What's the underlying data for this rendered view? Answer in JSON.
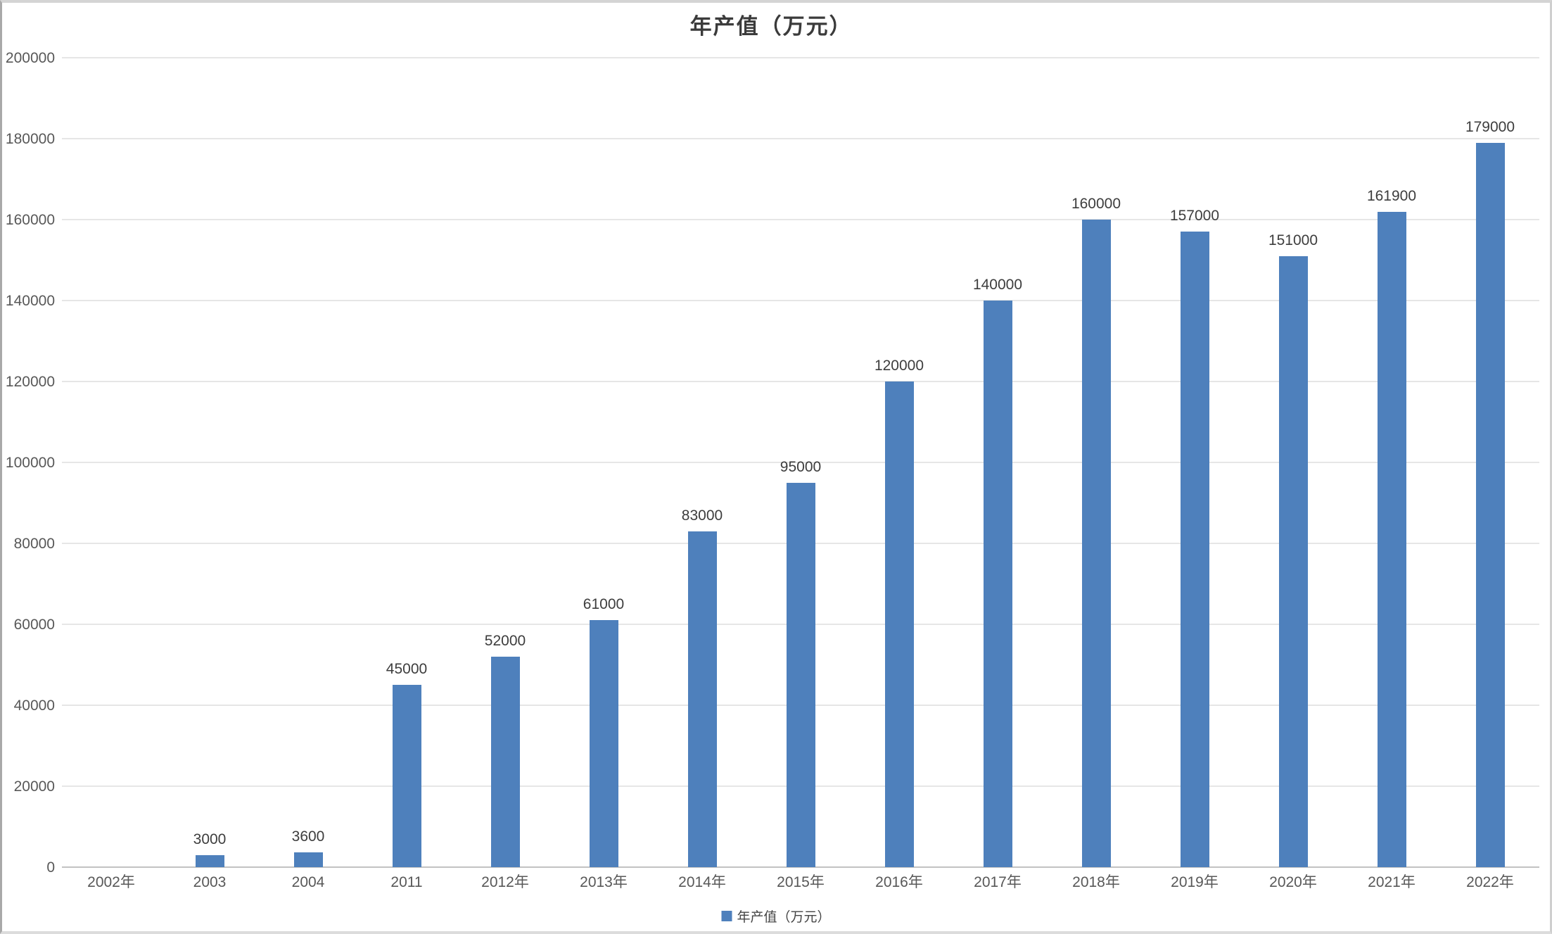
{
  "chart_data": {
    "type": "bar",
    "title": "年产值（万元）",
    "series_name": "年产值（万元）",
    "categories": [
      "2002年",
      "2003",
      "2004",
      "2011",
      "2012年",
      "2013年",
      "2014年",
      "2015年",
      "2016年",
      "2017年",
      "2018年",
      "2019年",
      "2020年",
      "2021年",
      "2022年"
    ],
    "values": [
      0,
      3000,
      3600,
      45000,
      52000,
      61000,
      83000,
      95000,
      120000,
      140000,
      160000,
      157000,
      151000,
      161900,
      179000
    ],
    "data_labels": [
      "",
      "3000",
      "3600",
      "45000",
      "52000",
      "61000",
      "83000",
      "95000",
      "120000",
      "140000",
      "160000",
      "157000",
      "151000",
      "161900",
      "179000"
    ],
    "xlabel": "",
    "ylabel": "",
    "ylim": [
      0,
      200000
    ],
    "y_tick_step": 20000,
    "y_tick_labels": [
      "0",
      "20000",
      "40000",
      "60000",
      "80000",
      "100000",
      "120000",
      "140000",
      "160000",
      "180000",
      "200000"
    ],
    "grid": true,
    "legend_position": "bottom"
  },
  "colors": {
    "bar": "#4e80bc",
    "gridline": "#e6e6e6",
    "axis_line": "#c2c2c2",
    "tick_label": "#585858",
    "data_label": "#3d3d3d",
    "title": "#3b3b3b",
    "frame": "#d4d4d4"
  }
}
